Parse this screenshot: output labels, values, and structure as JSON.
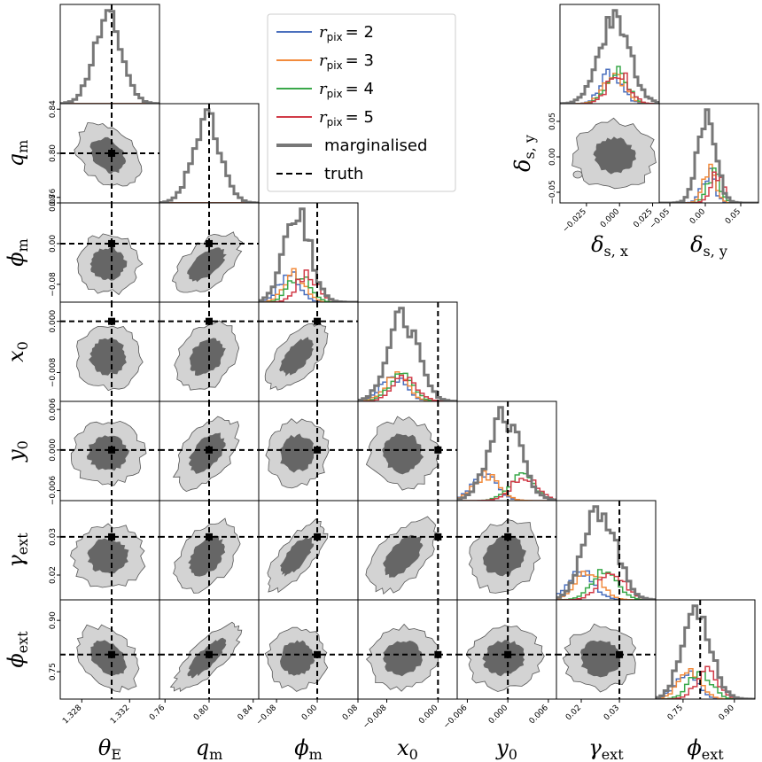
{
  "chart_data": {
    "type": "corner",
    "parameters": [
      {
        "symbol": "θ",
        "sub": "E",
        "truth": 1.3305,
        "range": [
          1.3262,
          1.3345
        ],
        "ticks": [
          1.328,
          1.332
        ],
        "tick_labels": [
          "1.328",
          "1.332"
        ]
      },
      {
        "symbol": "q",
        "sub": "m",
        "truth": 0.8,
        "range": [
          0.755,
          0.845
        ],
        "ticks": [
          0.76,
          0.8,
          0.84
        ],
        "tick_labels": [
          "0.76",
          "0.80",
          "0.84"
        ]
      },
      {
        "symbol": "ϕ",
        "sub": "m",
        "truth": 0.0,
        "range": [
          -0.115,
          0.08
        ],
        "ticks": [
          -0.08,
          0.0,
          0.08
        ],
        "tick_labels": [
          "−0.08",
          "0.00",
          "0.08"
        ]
      },
      {
        "symbol": "x",
        "sub": "0",
        "truth": 0.0,
        "range": [
          -0.0125,
          0.003
        ],
        "ticks": [
          -0.008,
          0.0
        ],
        "tick_labels": [
          "−0.008",
          "0.000"
        ]
      },
      {
        "symbol": "y",
        "sub": "0",
        "truth": 0.0,
        "range": [
          -0.0075,
          0.0072
        ],
        "ticks": [
          -0.006,
          0.0,
          0.006
        ],
        "tick_labels": [
          "−0.006",
          "0.000",
          "0.006"
        ]
      },
      {
        "symbol": "γ",
        "sub": "ext",
        "truth": 0.03,
        "range": [
          0.0135,
          0.0395
        ],
        "ticks": [
          0.02,
          0.03
        ],
        "tick_labels": [
          "0.02",
          "0.03"
        ]
      },
      {
        "symbol": "ϕ",
        "sub": "ext",
        "truth": 0.8,
        "range": [
          0.67,
          0.96
        ],
        "ticks": [
          0.75,
          0.9
        ],
        "tick_labels": [
          "0.75",
          "0.90"
        ]
      }
    ],
    "inset_parameters": [
      {
        "symbol": "δ",
        "sub": "s, x",
        "range": [
          -0.045,
          0.03
        ],
        "ticks": [
          -0.025,
          0.0,
          0.025
        ],
        "tick_labels": [
          "−0.025",
          "0.000",
          "0.025"
        ]
      },
      {
        "symbol": "δ",
        "sub": "s, y",
        "range": [
          -0.065,
          0.075
        ],
        "ticks": [
          -0.05,
          0.0,
          0.05
        ],
        "tick_labels": [
          "−0.05",
          "0.00",
          "0.05"
        ]
      }
    ],
    "series": [
      {
        "name": "r_pix = 2",
        "color": "#4a6fbd"
      },
      {
        "name": "r_pix = 3",
        "color": "#f28b3c"
      },
      {
        "name": "r_pix = 4",
        "color": "#3aa84a"
      },
      {
        "name": "r_pix = 5",
        "color": "#d13b48"
      },
      {
        "name": "marginalised",
        "color": "#777777"
      },
      {
        "name": "truth",
        "color": "#000000"
      }
    ],
    "legend_placement": "top-center",
    "contour_colors": {
      "outer": "#d3d3d3",
      "inner": "#666666"
    }
  },
  "legend": {
    "rpix_symbol": "r",
    "rpix_sub": "pix",
    "rpix_values": [
      "= 2",
      "= 3",
      "= 4",
      "= 5"
    ],
    "marginalised": "marginalised",
    "truth": "truth"
  }
}
